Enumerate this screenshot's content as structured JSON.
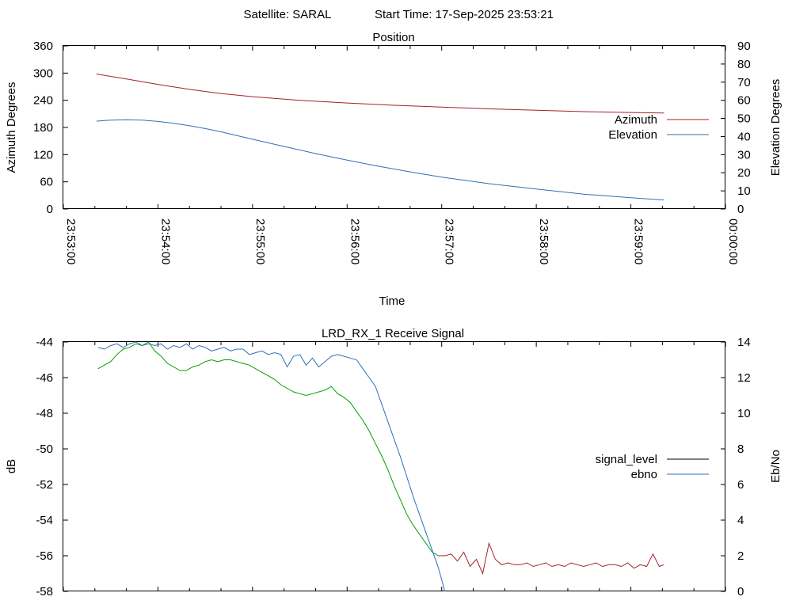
{
  "header": {
    "satellite_label": "Satellite: SARAL",
    "start_time_label": "Start Time: 17-Sep-2025 23:53:21"
  },
  "chart_data": [
    {
      "type": "line",
      "title": "Position",
      "xlabel": "Time",
      "ylabel": "Azimuth Degrees",
      "y2label": "Elevation Degrees",
      "x_ticks": [
        "23:53:00",
        "23:54:00",
        "23:55:00",
        "23:56:00",
        "23:57:00",
        "23:58:00",
        "23:59:00",
        "00:00:00"
      ],
      "x_unit": "seconds",
      "xlim": [
        0,
        420
      ],
      "ylim": [
        0,
        360
      ],
      "y_ticks": [
        0,
        60,
        120,
        180,
        240,
        300,
        360
      ],
      "y2lim": [
        0,
        90
      ],
      "y2_ticks": [
        0,
        10,
        20,
        30,
        40,
        50,
        60,
        70,
        80,
        90
      ],
      "legend_position": "right",
      "series": [
        {
          "name": "Azimuth",
          "axis": "y",
          "color": "#a0222a",
          "x": [
            21,
            40,
            60,
            80,
            100,
            120,
            150,
            180,
            210,
            240,
            270,
            300,
            330,
            360,
            381
          ],
          "values": [
            298,
            287,
            275,
            264,
            255,
            248,
            240,
            234,
            229,
            225,
            221,
            218,
            215,
            213,
            212
          ]
        },
        {
          "name": "Elevation",
          "axis": "y2",
          "color": "#2f6fb4",
          "x": [
            21,
            30,
            40,
            50,
            60,
            70,
            80,
            90,
            100,
            120,
            140,
            160,
            180,
            200,
            220,
            240,
            270,
            300,
            330,
            360,
            381
          ],
          "values": [
            48.5,
            49,
            49.3,
            49,
            48.3,
            47.3,
            46,
            44.4,
            42.6,
            38.5,
            34.5,
            30.6,
            27,
            23.6,
            20.5,
            17.6,
            14,
            11,
            8.2,
            6.2,
            5
          ]
        }
      ]
    },
    {
      "type": "line",
      "title": "LRD_RX_1 Receive Signal",
      "xlabel": "",
      "ylabel": "dB",
      "y2label": "Eb/No",
      "x_unit": "seconds",
      "xlim": [
        0,
        420
      ],
      "ylim": [
        -58,
        -44
      ],
      "y_ticks": [
        -58,
        -56,
        -54,
        -52,
        -50,
        -48,
        -46,
        -44
      ],
      "y2lim": [
        0,
        14
      ],
      "y2_ticks": [
        0,
        2,
        4,
        6,
        8,
        10,
        12,
        14
      ],
      "legend_position": "right",
      "series": [
        {
          "name": "signal_level",
          "axis": "y",
          "color": "#000000",
          "colors": [
            "#00a000",
            "#a0222a"
          ],
          "x": [
            22,
            26,
            30,
            34,
            38,
            42,
            46,
            50,
            54,
            58,
            62,
            66,
            70,
            74,
            78,
            82,
            86,
            90,
            94,
            98,
            102,
            106,
            110,
            114,
            118,
            122,
            126,
            130,
            134,
            138,
            142,
            146,
            150,
            154,
            158,
            162,
            166,
            170,
            174,
            178,
            182,
            186,
            190,
            194,
            198,
            202,
            206,
            210,
            214,
            218,
            222,
            226,
            230,
            234,
            238,
            242,
            246,
            250,
            254,
            258,
            262,
            266,
            270,
            274,
            278,
            282,
            286,
            290,
            294,
            298,
            302,
            306,
            310,
            314,
            318,
            322,
            326,
            330,
            334,
            338,
            342,
            346,
            350,
            354,
            358,
            362,
            366,
            370,
            374,
            378,
            381
          ],
          "values": [
            -45.5,
            -45.3,
            -45.1,
            -44.7,
            -44.4,
            -44.3,
            -44.1,
            -44.2,
            -44.0,
            -44.5,
            -44.8,
            -45.2,
            -45.4,
            -45.6,
            -45.6,
            -45.4,
            -45.3,
            -45.1,
            -45.0,
            -45.1,
            -45.0,
            -45.0,
            -45.1,
            -45.2,
            -45.3,
            -45.5,
            -45.7,
            -45.9,
            -46.1,
            -46.4,
            -46.6,
            -46.8,
            -46.9,
            -47.0,
            -46.9,
            -46.8,
            -46.7,
            -46.5,
            -46.9,
            -47.1,
            -47.4,
            -47.9,
            -48.4,
            -49.0,
            -49.7,
            -50.4,
            -51.2,
            -52.1,
            -52.9,
            -53.7,
            -54.3,
            -54.8,
            -55.3,
            -55.8,
            -56.0,
            -56.0,
            -55.9,
            -56.3,
            -55.8,
            -56.6,
            -56.2,
            -57.0,
            -55.3,
            -56.2,
            -56.5,
            -56.4,
            -56.5,
            -56.5,
            -56.4,
            -56.6,
            -56.5,
            -56.4,
            -56.6,
            -56.5,
            -56.6,
            -56.4,
            -56.5,
            -56.6,
            -56.5,
            -56.4,
            -56.6,
            -56.5,
            -56.5,
            -56.6,
            -56.4,
            -56.7,
            -56.5,
            -56.6,
            -55.9,
            -56.6,
            -56.5
          ]
        },
        {
          "name": "ebno",
          "axis": "y2",
          "color": "#2f6fb4",
          "x": [
            22,
            26,
            30,
            34,
            38,
            42,
            46,
            50,
            54,
            58,
            62,
            66,
            70,
            74,
            78,
            82,
            86,
            90,
            94,
            98,
            102,
            106,
            110,
            114,
            118,
            122,
            126,
            130,
            134,
            138,
            142,
            146,
            150,
            154,
            158,
            162,
            166,
            170,
            174,
            178,
            182,
            186,
            190,
            194,
            198,
            202,
            206,
            210,
            214,
            218,
            222,
            226,
            230,
            234,
            238,
            242
          ],
          "values": [
            13.7,
            13.6,
            13.8,
            13.9,
            13.7,
            13.9,
            14.0,
            13.8,
            13.9,
            13.8,
            13.9,
            13.6,
            13.8,
            13.7,
            13.9,
            13.6,
            13.8,
            13.7,
            13.5,
            13.6,
            13.7,
            13.5,
            13.6,
            13.6,
            13.3,
            13.4,
            13.5,
            13.3,
            13.4,
            13.3,
            12.6,
            13.2,
            13.3,
            12.7,
            13.1,
            12.6,
            12.9,
            13.2,
            13.3,
            13.2,
            13.1,
            13.0,
            12.5,
            12.0,
            11.5,
            10.5,
            9.5,
            8.5,
            7.5,
            6.4,
            5.3,
            4.3,
            3.3,
            2.3,
            1.3,
            0.0
          ]
        }
      ]
    }
  ]
}
